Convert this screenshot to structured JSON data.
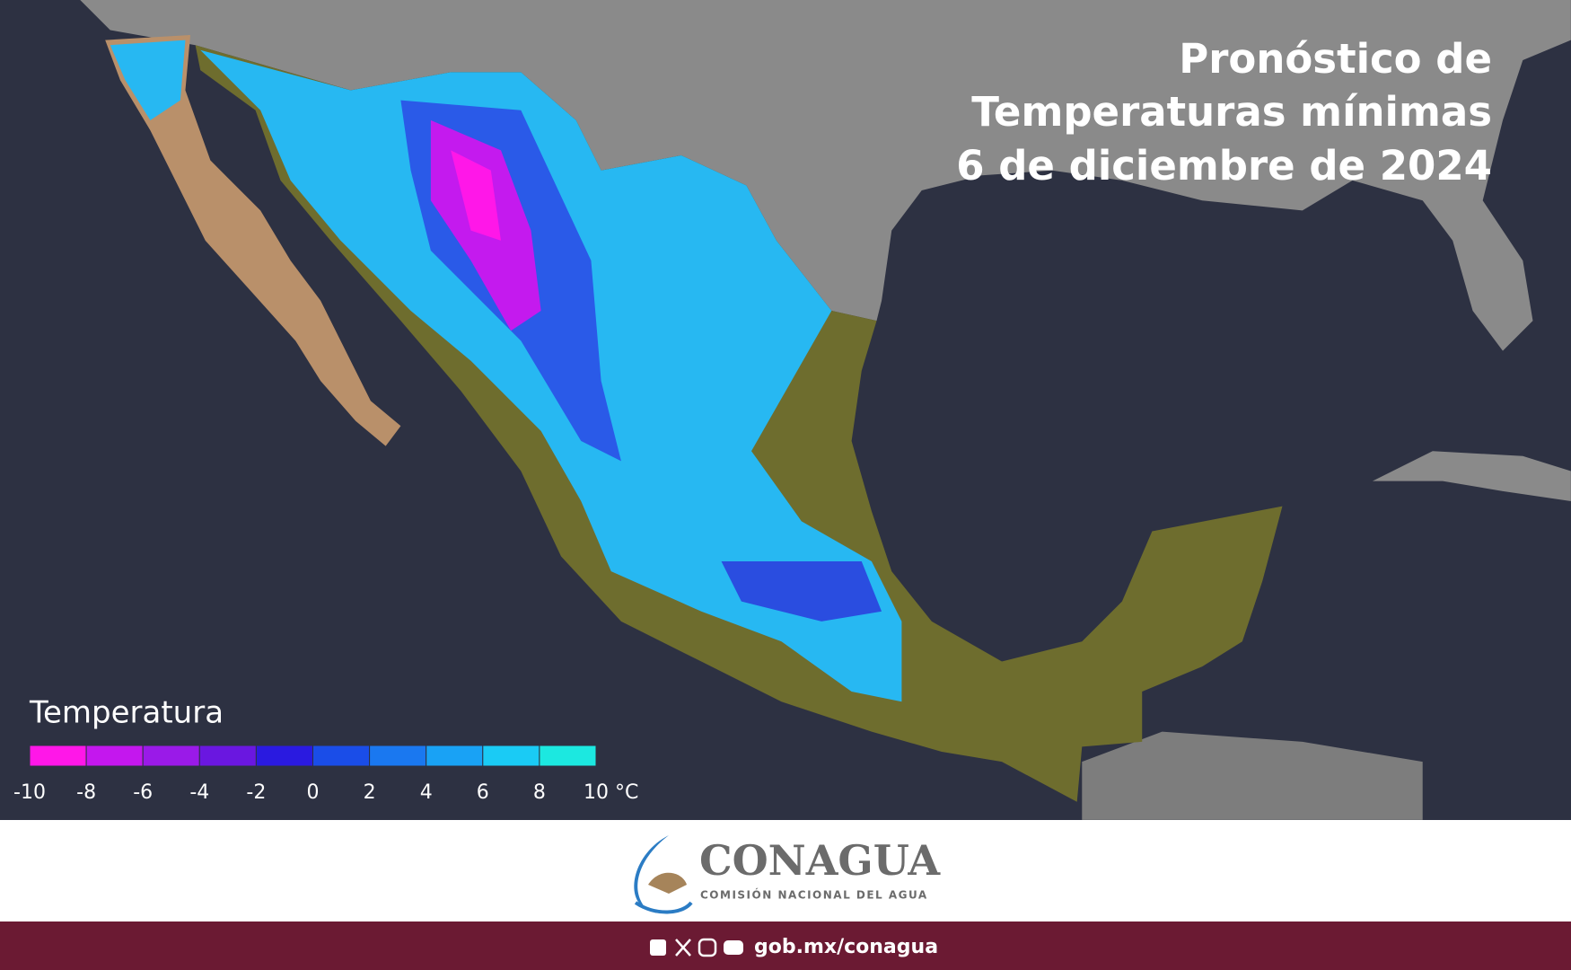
{
  "header": {
    "title_lines": [
      "Pronóstico de",
      "Temperaturas mínimas",
      "6 de diciembre de 2024"
    ]
  },
  "legend": {
    "title": "Temperatura",
    "ticks": [
      -10,
      -8,
      -6,
      -4,
      -2,
      0,
      2,
      4,
      6,
      8,
      {
        "value": 10,
        "label": "10 °C"
      }
    ],
    "colors": [
      "#ff17e8",
      "#c417ee",
      "#9a1ae8",
      "#6a17e0",
      "#2a1ae0",
      "#1a4de8",
      "#1a78f0",
      "#19a2f5",
      "#1acbf5",
      "#1ce8e0"
    ]
  },
  "logo": {
    "name": "CONAGUA",
    "subtitle": "COMISIÓN NACIONAL DEL AGUA"
  },
  "footer": {
    "url": "gob.mx/conagua"
  }
}
